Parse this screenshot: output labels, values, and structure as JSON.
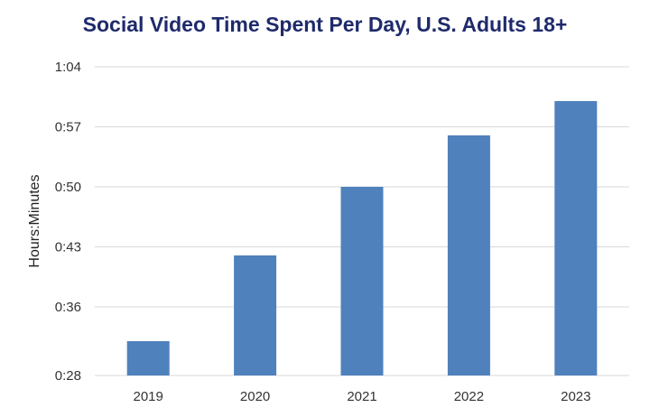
{
  "chart_data": {
    "type": "bar",
    "title": "Social Video Time Spent Per Day, U.S. Adults 18+",
    "xlabel": "",
    "ylabel": "Hours:Minutes",
    "categories": [
      "2019",
      "2020",
      "2021",
      "2022",
      "2023"
    ],
    "values": [
      "0:32",
      "0:42",
      "0:50",
      "0:56",
      "1:00"
    ],
    "y_ticks": [
      "0:28",
      "0:36",
      "0:43",
      "0:50",
      "0:57",
      "1:04"
    ],
    "ylim": [
      "0:28",
      "1:04"
    ],
    "grid": true,
    "legend": "none",
    "colors": {
      "bar": "#4f81bd",
      "grid": "#d9d9d9",
      "title": "#1f2a6b"
    }
  }
}
